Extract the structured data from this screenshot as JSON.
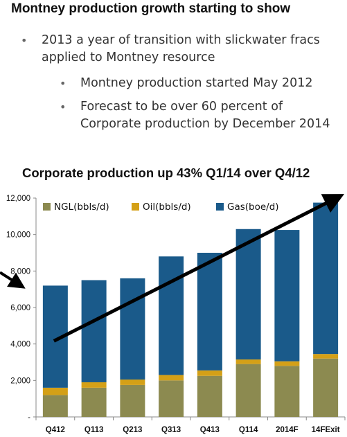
{
  "slide": {
    "title": "Montney production growth starting to show",
    "bullets": [
      "2013 a year of transition with slickwater fracs applied to Montney resource",
      "Montney production started May 2012",
      "Forecast to be over 60 percent of Corporate production by December 2014"
    ],
    "bullet_icon": "bullet-dot"
  },
  "chart_data": {
    "type": "bar",
    "stacked": true,
    "title": "Corporate production up 43% Q1/14 over Q4/12",
    "categories": [
      "Q412",
      "Q113",
      "Q213",
      "Q313",
      "Q413",
      "Q114",
      "2014F",
      "14FExit"
    ],
    "series": [
      {
        "name": "NGL(bbls/d)",
        "color": "#8c8a50",
        "values": [
          1200,
          1600,
          1750,
          2000,
          2250,
          2900,
          2800,
          3200
        ]
      },
      {
        "name": "Oil(bbls/d)",
        "color": "#d4a017",
        "values": [
          400,
          300,
          300,
          300,
          300,
          250,
          250,
          250
        ]
      },
      {
        "name": "Gas(boe/d)",
        "color": "#1a5a8a",
        "values": [
          5600,
          5600,
          5550,
          6500,
          6450,
          7150,
          7200,
          8300
        ]
      }
    ],
    "yticks": [
      "-",
      "2,000",
      "4,000",
      "6,000",
      "8,000",
      "10,000",
      "12,000"
    ],
    "ylim": [
      0,
      12000
    ],
    "legend_position": "top-left",
    "grid": false,
    "annotations": [
      "trend-arrow"
    ]
  }
}
